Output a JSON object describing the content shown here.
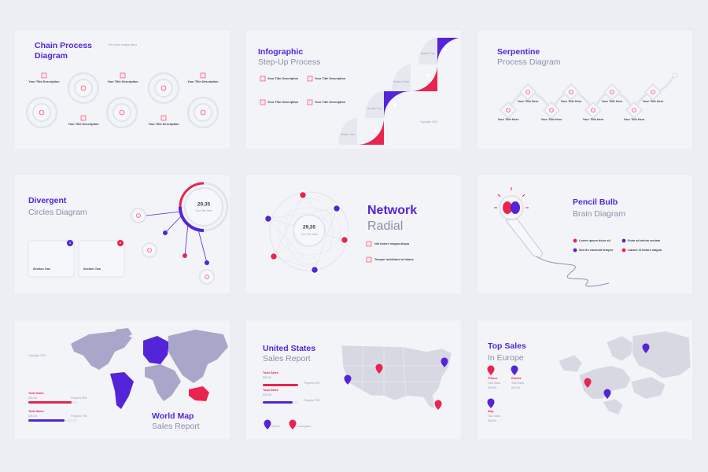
{
  "slides": [
    {
      "title": "Chain Process",
      "subtitle": "Diagram",
      "note": "Net dolore magna aliqua",
      "labels": [
        "Your Title Description",
        "Your Title Description",
        "Your Title Description",
        "Your Title Description",
        "Your Title Description"
      ]
    },
    {
      "title": "Infographic",
      "subtitle": "Step-Up Process",
      "labels": [
        "Your Title Description",
        "Your Title Description",
        "Your Title Description",
        "Your Title Description"
      ],
      "sections": [
        "Section One",
        "Section Two",
        "Section Three",
        "Section Four"
      ],
      "copyright": "Copyright 2022"
    },
    {
      "title": "Serpentine",
      "subtitle": "Process Diagram",
      "labels": [
        "Your Title Here",
        "Your Title Here",
        "Your Title Here",
        "Your Title Here",
        "Your Title Here",
        "Your Title Here",
        "Your Title Here",
        "Your Title Here"
      ]
    },
    {
      "title": "Divergent",
      "subtitle": "Circles Diagram",
      "value": "29,35",
      "value_caption": "Your Title Here",
      "sections": [
        {
          "badge": "1",
          "label": "Section One"
        },
        {
          "badge": "2",
          "label": "Section Two"
        }
      ]
    },
    {
      "title": "Network",
      "subtitle": "Radial",
      "value": "29,35",
      "value_caption": "Your Title Here",
      "bullets": [
        "Net dolore magna aliqua",
        "Tempor incididunt ut labore"
      ]
    },
    {
      "title": "Pencil Bulb",
      "subtitle": "Brain Diagram",
      "bullets": [
        "Lorem ipsum dolor sit",
        "Enim ad minim veniam",
        "Sed do eiusmod tempor",
        "Labore et dolore magna"
      ]
    },
    {
      "title": "World Map",
      "subtitle": "Sales Report",
      "copyright": "Copyright 2022",
      "stats": [
        {
          "label": "Total Sales",
          "value": "$35,4M",
          "progress": "Progress 90%"
        },
        {
          "label": "Total Sales",
          "value": "$35,4M",
          "progress": "Progress 75%"
        }
      ]
    },
    {
      "title": "United States",
      "subtitle": "Sales Report",
      "stats": [
        {
          "label": "Total Sales",
          "value": "$35,4M",
          "progress": "Progress 90%"
        },
        {
          "label": "Total Sales",
          "value": "$35,4M",
          "progress": "Progress 75%"
        }
      ],
      "legend": [
        "Denver",
        "Los Angeles"
      ]
    },
    {
      "title": "Top Sales",
      "subtitle": "In Europe",
      "stats": [
        {
          "country": "France",
          "label": "Total Sales",
          "value": "$35,4M"
        },
        {
          "country": "Russia",
          "label": "Total Sales",
          "value": "$35,4M"
        },
        {
          "country": "Italy",
          "label": "Total Sales",
          "value": "$35,4M"
        }
      ]
    }
  ]
}
